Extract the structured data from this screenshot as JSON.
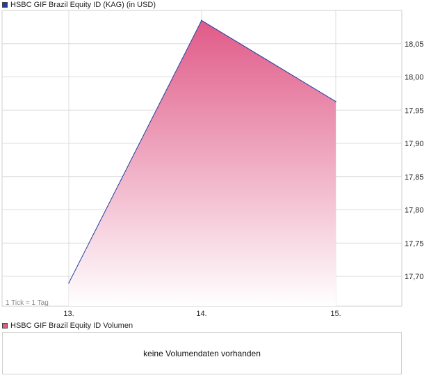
{
  "legend": {
    "price_label": "HSBC GIF Brazil Equity ID (KAG) (in USD)",
    "price_color": "#1f3f9f",
    "volume_label": "HSBC GIF Brazil Equity ID Volumen",
    "volume_color": "#d9607a"
  },
  "tick_note": "1 Tick = 1 Tag",
  "volume_empty_text": "keine Volumendaten vorhanden",
  "chart_data": {
    "type": "area",
    "title": "HSBC GIF Brazil Equity ID (KAG) (in USD)",
    "x": [
      "13.",
      "14.",
      "15."
    ],
    "series": [
      {
        "name": "HSBC GIF Brazil Equity ID (KAG) (in USD)",
        "values": [
          17.69,
          18.085,
          17.963
        ]
      }
    ],
    "yticks": [
      "17,70",
      "17,75",
      "17,80",
      "17,85",
      "17,90",
      "17,95",
      "18,00",
      "18,05"
    ],
    "ytick_values": [
      17.7,
      17.75,
      17.8,
      17.85,
      17.9,
      17.95,
      18.0,
      18.05
    ],
    "ylim": [
      17.655,
      18.1
    ],
    "grid": true,
    "line_color": "#1f3f9f",
    "fill_color_top": "#e05a88",
    "fill_color_bottom": "#ffffff",
    "axis_position": "right"
  }
}
